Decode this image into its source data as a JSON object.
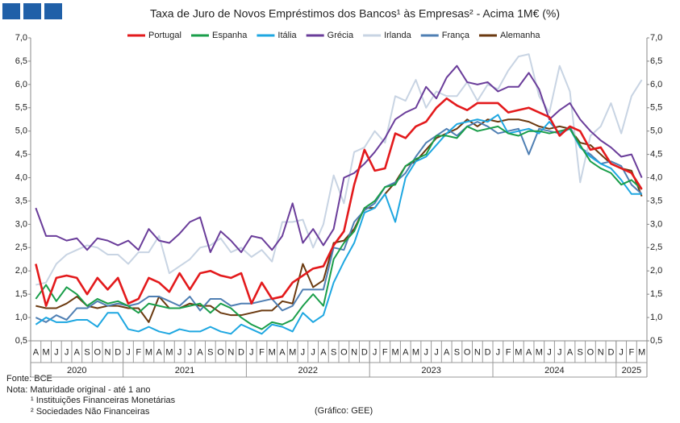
{
  "chart_data": {
    "type": "line",
    "title": "Taxa de Juro de Novos Empréstimos dos Bancos¹ às Empresas² - Acima 1M€ (%)",
    "categories": [
      "A",
      "M",
      "J",
      "J",
      "A",
      "S",
      "O",
      "N",
      "D",
      "J",
      "F",
      "M",
      "A",
      "M",
      "J",
      "J",
      "A",
      "S",
      "O",
      "N",
      "D",
      "J",
      "F",
      "M",
      "A",
      "M",
      "J",
      "J",
      "A",
      "S",
      "O",
      "N",
      "D",
      "J",
      "F",
      "M",
      "A",
      "M",
      "J",
      "J",
      "A",
      "S",
      "O",
      "N",
      "D",
      "J",
      "F",
      "M",
      "A",
      "M",
      "J",
      "J",
      "A",
      "S",
      "O",
      "N",
      "D",
      "J",
      "F",
      "M"
    ],
    "years": [
      "2020",
      "2021",
      "2022",
      "2023",
      "2024",
      "2025"
    ],
    "series": [
      {
        "name": "Portugal",
        "color": "#e31a1c",
        "values": [
          2.15,
          1.25,
          1.85,
          1.9,
          1.85,
          1.5,
          1.85,
          1.6,
          1.85,
          1.3,
          1.4,
          1.85,
          1.75,
          1.55,
          1.95,
          1.6,
          1.95,
          2.0,
          1.9,
          1.85,
          1.95,
          1.3,
          1.75,
          1.4,
          1.45,
          1.75,
          1.9,
          2.05,
          2.1,
          2.55,
          2.85,
          3.85,
          4.6,
          4.15,
          4.2,
          4.95,
          4.85,
          5.1,
          5.2,
          5.5,
          5.7,
          5.55,
          5.45,
          5.6,
          5.6,
          5.6,
          5.4,
          5.45,
          5.5,
          5.4,
          5.3,
          4.9,
          5.1,
          5.0,
          4.6,
          4.65,
          4.3,
          4.2,
          4.1,
          3.75
        ]
      },
      {
        "name": "Espanha",
        "color": "#1a9e4a",
        "values": [
          1.4,
          1.7,
          1.35,
          1.65,
          1.5,
          1.25,
          1.4,
          1.3,
          1.35,
          1.25,
          1.1,
          1.3,
          1.25,
          1.2,
          1.2,
          1.25,
          1.3,
          1.1,
          1.3,
          1.2,
          1.0,
          0.85,
          0.75,
          0.9,
          0.85,
          0.95,
          1.25,
          1.5,
          1.25,
          2.25,
          2.6,
          2.85,
          3.35,
          3.5,
          3.8,
          3.85,
          4.25,
          4.4,
          4.5,
          4.9,
          4.9,
          4.85,
          5.1,
          5.0,
          5.05,
          5.1,
          4.95,
          4.9,
          5.0,
          5.0,
          4.95,
          5.0,
          5.05,
          4.7,
          4.35,
          4.2,
          4.1,
          3.85,
          3.95,
          3.75
        ]
      },
      {
        "name": "Itália",
        "color": "#1ea7e1",
        "values": [
          0.85,
          1.0,
          0.9,
          0.9,
          0.95,
          0.95,
          0.8,
          1.1,
          1.1,
          0.75,
          0.7,
          0.8,
          0.7,
          0.65,
          0.75,
          0.7,
          0.7,
          0.8,
          0.7,
          0.65,
          0.85,
          0.75,
          0.65,
          0.85,
          0.8,
          0.7,
          1.1,
          0.9,
          1.05,
          1.75,
          2.2,
          2.6,
          3.25,
          3.35,
          3.65,
          3.05,
          4.0,
          4.35,
          4.45,
          4.7,
          4.95,
          5.15,
          5.2,
          5.25,
          5.2,
          5.35,
          4.95,
          5.0,
          5.05,
          4.95,
          5.2,
          4.95,
          5.05,
          4.65,
          4.45,
          4.3,
          4.2,
          3.95,
          3.65,
          3.65
        ]
      },
      {
        "name": "Grécia",
        "color": "#6a3d9a",
        "values": [
          3.35,
          2.75,
          2.75,
          2.65,
          2.7,
          2.45,
          2.7,
          2.65,
          2.55,
          2.65,
          2.45,
          2.9,
          2.65,
          2.6,
          2.8,
          3.05,
          3.15,
          2.4,
          2.85,
          2.65,
          2.4,
          2.75,
          2.7,
          2.45,
          2.75,
          3.45,
          2.6,
          2.9,
          2.55,
          2.9,
          4.0,
          4.1,
          4.3,
          4.55,
          4.85,
          5.25,
          5.4,
          5.5,
          5.95,
          5.7,
          6.15,
          6.4,
          6.05,
          6.0,
          6.05,
          5.85,
          5.95,
          5.95,
          6.25,
          5.9,
          5.25,
          5.45,
          5.6,
          5.25,
          5.0,
          4.8,
          4.65,
          4.45,
          4.5,
          4.0
        ]
      },
      {
        "name": "Irlanda",
        "color": "#c8d4e3",
        "values": [
          1.7,
          1.75,
          2.15,
          2.35,
          2.45,
          2.55,
          2.5,
          2.35,
          2.35,
          2.15,
          2.4,
          2.4,
          2.75,
          1.95,
          2.1,
          2.25,
          2.5,
          2.55,
          2.7,
          2.4,
          2.5,
          2.3,
          2.45,
          2.2,
          3.05,
          3.05,
          3.1,
          2.5,
          3.0,
          4.05,
          3.45,
          4.55,
          4.65,
          5.0,
          4.75,
          5.75,
          5.65,
          6.1,
          5.5,
          5.85,
          5.75,
          5.75,
          6.05,
          5.65,
          6.0,
          5.9,
          6.3,
          6.6,
          6.65,
          5.75,
          5.4,
          6.4,
          5.85,
          3.9,
          4.9,
          5.1,
          5.6,
          4.95,
          5.75,
          6.1
        ]
      },
      {
        "name": "França",
        "color": "#4f7fb3",
        "values": [
          1.0,
          0.9,
          1.05,
          0.95,
          1.2,
          1.2,
          1.35,
          1.25,
          1.3,
          1.25,
          1.3,
          1.45,
          1.45,
          1.35,
          1.25,
          1.45,
          1.15,
          1.4,
          1.4,
          1.25,
          1.3,
          1.3,
          1.35,
          1.4,
          1.15,
          1.25,
          1.6,
          1.6,
          1.6,
          2.5,
          2.45,
          3.05,
          3.3,
          3.45,
          3.8,
          3.9,
          4.1,
          4.45,
          4.75,
          4.9,
          5.05,
          4.9,
          5.1,
          5.2,
          5.1,
          4.95,
          5.0,
          5.05,
          4.5,
          5.05,
          5.0,
          4.95,
          5.1,
          4.65,
          4.5,
          4.3,
          4.35,
          4.25,
          3.85,
          3.65
        ]
      },
      {
        "name": "Alemanha",
        "color": "#6b3a10",
        "values": [
          1.25,
          1.2,
          1.2,
          1.3,
          1.45,
          1.25,
          1.2,
          1.25,
          1.25,
          1.2,
          1.2,
          0.9,
          1.45,
          1.2,
          1.2,
          1.3,
          1.25,
          1.25,
          1.1,
          1.05,
          1.05,
          1.1,
          1.15,
          1.15,
          1.35,
          1.3,
          2.15,
          1.65,
          1.8,
          2.6,
          2.65,
          2.9,
          3.35,
          3.35,
          3.65,
          3.9,
          4.25,
          4.35,
          4.6,
          4.85,
          4.95,
          5.05,
          5.25,
          5.1,
          5.25,
          5.2,
          5.25,
          5.25,
          5.2,
          5.1,
          5.05,
          5.1,
          5.05,
          4.75,
          4.7,
          4.5,
          4.3,
          4.2,
          4.15,
          3.6
        ]
      }
    ],
    "ylim": [
      0.5,
      7.0
    ],
    "yticks": [
      {
        "value": 0.5,
        "label": "0,5"
      },
      {
        "value": 1.0,
        "label": "1,0"
      },
      {
        "value": 1.5,
        "label": "1,5"
      },
      {
        "value": 2.0,
        "label": "2,0"
      },
      {
        "value": 2.5,
        "label": "2,5"
      },
      {
        "value": 3.0,
        "label": "3,0"
      },
      {
        "value": 3.5,
        "label": "3,5"
      },
      {
        "value": 4.0,
        "label": "4,0"
      },
      {
        "value": 4.5,
        "label": "4,5"
      },
      {
        "value": 5.0,
        "label": "5,0"
      },
      {
        "value": 5.5,
        "label": "5,5"
      },
      {
        "value": 6.0,
        "label": "6,0"
      },
      {
        "value": 6.5,
        "label": "6,5"
      },
      {
        "value": 7.0,
        "label": "7,0"
      }
    ],
    "y2lim": [
      0.5,
      7.0
    ],
    "y2ticks": [
      {
        "value": 0.5,
        "label": "0,5"
      },
      {
        "value": 1.0,
        "label": "1,0"
      },
      {
        "value": 1.5,
        "label": "1,5"
      },
      {
        "value": 2.0,
        "label": "2,0"
      },
      {
        "value": 2.5,
        "label": "2,5"
      },
      {
        "value": 3.0,
        "label": "3,0"
      },
      {
        "value": 3.5,
        "label": "3,5"
      },
      {
        "value": 4.0,
        "label": "4,0"
      },
      {
        "value": 4.5,
        "label": "4,5"
      },
      {
        "value": 5.0,
        "label": "5,0"
      },
      {
        "value": 5.5,
        "label": "5,5"
      },
      {
        "value": 6.0,
        "label": "6,0"
      },
      {
        "value": 6.5,
        "label": "6,5"
      },
      {
        "value": 7.0,
        "label": "7,0"
      }
    ],
    "grid": false,
    "legend": "top",
    "source": "Fonte: BCE",
    "note": "Nota: Maturidade original - até 1 ano",
    "footnote_1": "¹ Instituições Financeiras Monetárias",
    "footnote_2": "² Sociedades Não Financeiras",
    "credit": "(Gráfico: GEE)"
  }
}
